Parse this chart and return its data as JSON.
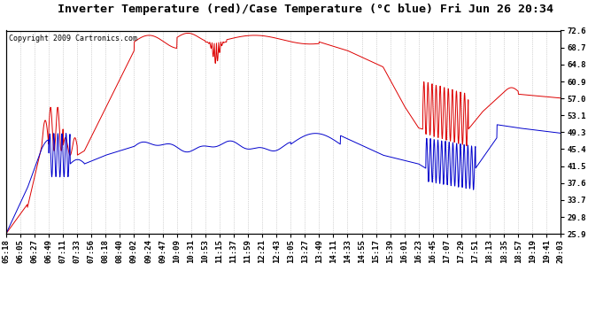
{
  "title": "Inverter Temperature (red)/Case Temperature (°C blue) Fri Jun 26 20:34",
  "copyright": "Copyright 2009 Cartronics.com",
  "ylabel_right_ticks": [
    72.6,
    68.7,
    64.8,
    60.9,
    57.0,
    53.1,
    49.3,
    45.4,
    41.5,
    37.6,
    33.7,
    29.8,
    25.9
  ],
  "ymin": 25.9,
  "ymax": 72.6,
  "x_labels": [
    "05:18",
    "06:05",
    "06:27",
    "06:49",
    "07:11",
    "07:33",
    "07:56",
    "08:18",
    "08:40",
    "09:02",
    "09:24",
    "09:47",
    "10:09",
    "10:31",
    "10:53",
    "11:15",
    "11:37",
    "11:59",
    "12:21",
    "12:43",
    "13:05",
    "13:27",
    "13:49",
    "14:11",
    "14:33",
    "14:55",
    "15:17",
    "15:39",
    "16:01",
    "16:23",
    "16:45",
    "17:07",
    "17:29",
    "17:51",
    "18:13",
    "18:35",
    "18:57",
    "19:19",
    "19:41",
    "20:03"
  ],
  "bg_color": "#ffffff",
  "plot_bg_color": "#ffffff",
  "grid_color": "#b0b0b0",
  "red_color": "#dd0000",
  "blue_color": "#0000cc",
  "title_fontsize": 9.5,
  "tick_fontsize": 6.5,
  "copyright_fontsize": 6
}
